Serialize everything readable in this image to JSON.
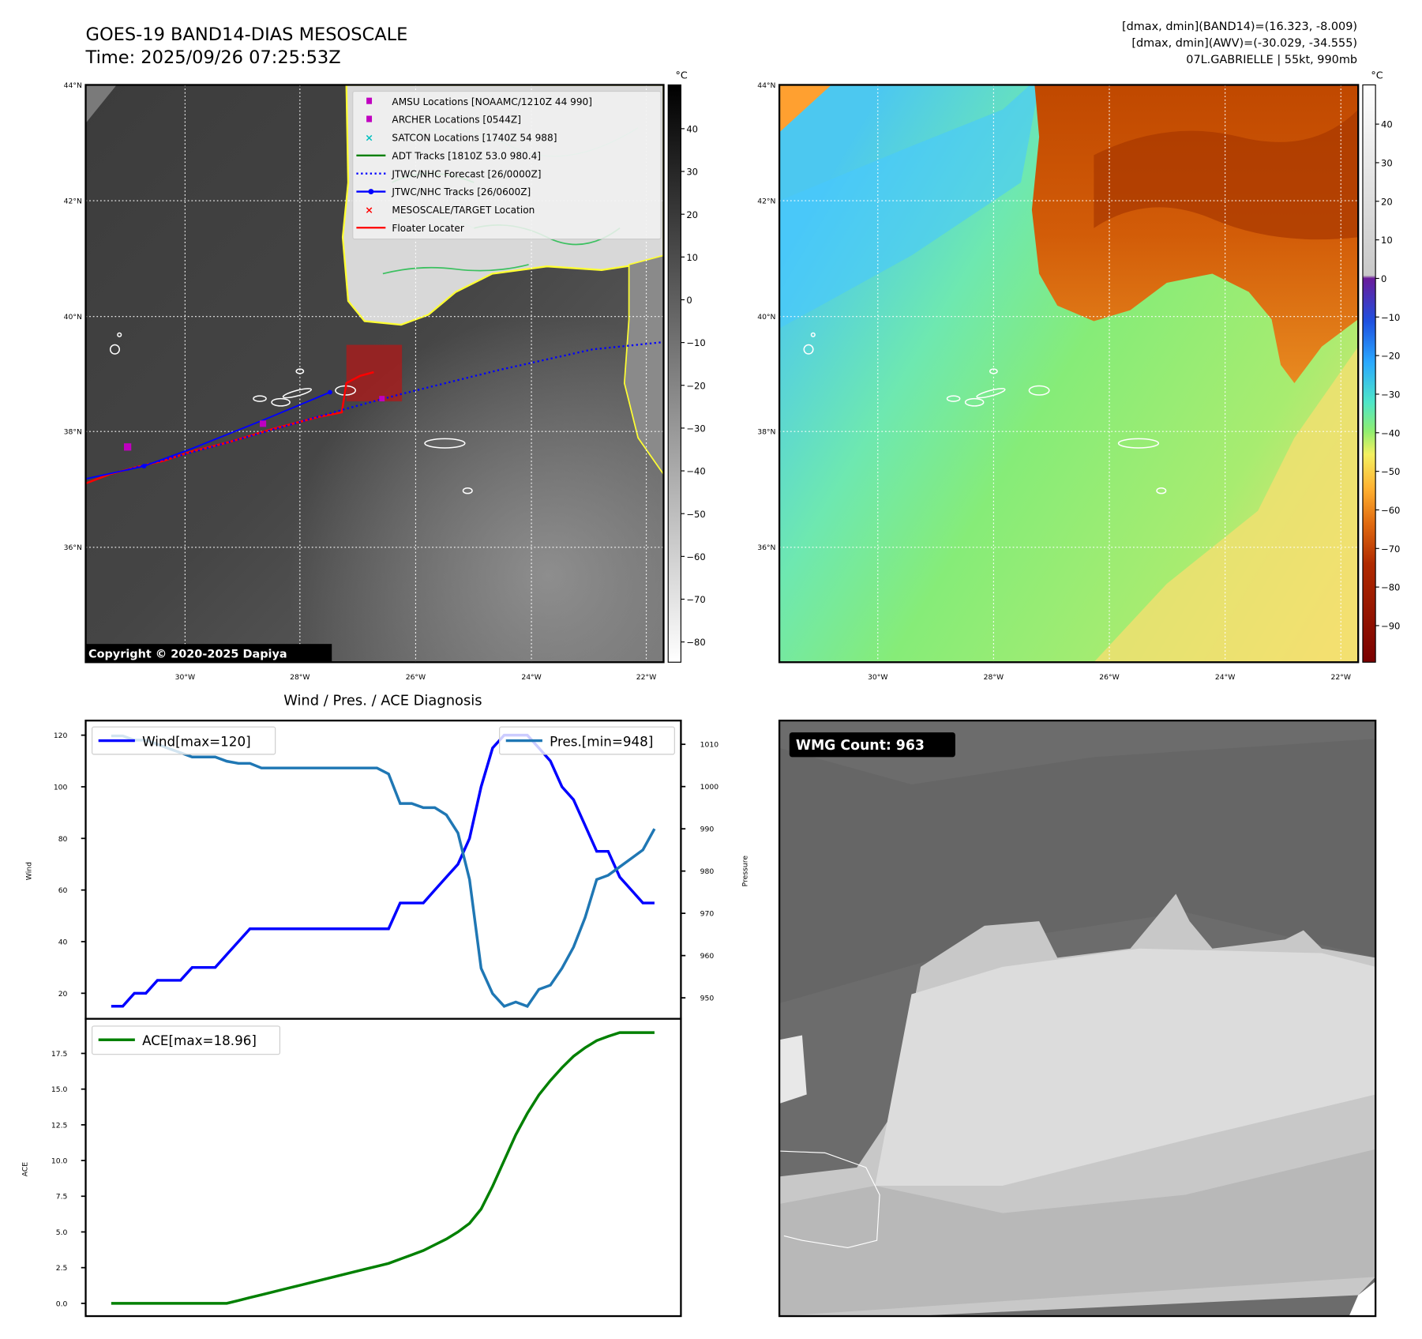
{
  "header": {
    "title": "GOES-19 BAND14-DIAS MESOSCALE",
    "time": "Time: 2025/09/26 07:25:53Z",
    "stats": [
      "[dmax, dmin](BAND14)=(16.323, -8.009)",
      "[dmax, dmin](AWV)=(-30.029, -34.555)",
      "07L.GABRIELLE | 55kt, 990mb"
    ]
  },
  "map_ir": {
    "lat_labels": [
      "44°N",
      "42°N",
      "40°N",
      "38°N",
      "36°N"
    ],
    "lon_labels": [
      "30°W",
      "28°W",
      "26°W",
      "24°W",
      "22°W"
    ],
    "colorbar_unit": "°C",
    "colorbar_ticks": [
      "40",
      "30",
      "20",
      "10",
      "0",
      "−10",
      "−20",
      "−30",
      "−40",
      "−50",
      "−60",
      "−70",
      "−80"
    ],
    "legend": [
      {
        "label": "AMSU Locations [NOAAMC/1210Z 44 990]",
        "marker": "square",
        "color": "#c000c0"
      },
      {
        "label": "ARCHER Locations [0544Z]",
        "marker": "square",
        "color": "#c000c0"
      },
      {
        "label": "SATCON Locations [1740Z 54 988]",
        "marker": "x",
        "color": "#00bfbf"
      },
      {
        "label": "ADT Tracks [1810Z 53.0 980.4]",
        "marker": "line",
        "color": "#008000"
      },
      {
        "label": "JTWC/NHC Forecast [26/0000Z]",
        "marker": "dotted",
        "color": "#0000ff"
      },
      {
        "label": "JTWC/NHC Tracks [26/0600Z]",
        "marker": "line-dot",
        "color": "#0000ff"
      },
      {
        "label": "MESOSCALE/TARGET Location",
        "marker": "x",
        "color": "#ff0000"
      },
      {
        "label": "Floater Locater",
        "marker": "line",
        "color": "#ff0000"
      }
    ],
    "copyright": "Copyright © 2020-2025 Dapiya"
  },
  "map_wv": {
    "lat_labels": [
      "44°N",
      "42°N",
      "40°N",
      "38°N",
      "36°N"
    ],
    "lon_labels": [
      "30°W",
      "28°W",
      "26°W",
      "24°W",
      "22°W"
    ],
    "colorbar_unit": "°C",
    "colorbar_ticks": [
      "40",
      "30",
      "20",
      "10",
      "0",
      "−10",
      "−20",
      "−30",
      "−40",
      "−50",
      "−60",
      "−70",
      "−80",
      "−90"
    ]
  },
  "wmg": {
    "label": "WMG Count: 963"
  },
  "chart_data": [
    {
      "type": "line",
      "title": "Wind / Pres. / ACE Diagnosis",
      "ylabel": "Wind",
      "ylabel_right": "Pressure",
      "yticks": [
        "20",
        "40",
        "60",
        "80",
        "100",
        "120"
      ],
      "yticks_right": [
        "950",
        "960",
        "970",
        "980",
        "990",
        "1000",
        "1010"
      ],
      "series": [
        {
          "name": "Wind[max=120]",
          "axis": "left",
          "color": "#0000ff",
          "values": [
            15,
            15,
            20,
            20,
            25,
            25,
            25,
            30,
            30,
            30,
            35,
            40,
            45,
            45,
            45,
            45,
            45,
            45,
            45,
            45,
            45,
            45,
            45,
            45,
            45,
            55,
            55,
            55,
            60,
            65,
            70,
            80,
            100,
            115,
            120,
            120,
            120,
            115,
            110,
            100,
            95,
            85,
            75,
            75,
            65,
            60,
            55,
            55
          ]
        },
        {
          "name": "Pres.[min=948]",
          "axis": "right",
          "color": "#1f77b4",
          "values": [
            1012,
            1012,
            1011,
            1011,
            1010,
            1009,
            1008,
            1007,
            1007,
            1007,
            1006,
            1005.5,
            1005.5,
            1004.4,
            1004.4,
            1004.4,
            1004.4,
            1004.4,
            1004.4,
            1004.4,
            1004.4,
            1004.4,
            1004.4,
            1004.4,
            1003,
            996,
            996,
            995,
            995,
            993.3,
            989,
            978,
            957,
            951,
            948,
            949,
            948,
            952,
            953,
            957,
            962,
            969,
            978,
            979,
            981,
            983,
            985,
            990
          ]
        }
      ]
    },
    {
      "type": "line",
      "ylabel": "ACE",
      "yticks": [
        "0.0",
        "2.5",
        "5.0",
        "7.5",
        "10.0",
        "12.5",
        "15.0",
        "17.5"
      ],
      "series": [
        {
          "name": "ACE[max=18.96]",
          "color": "#008000",
          "values": [
            0,
            0,
            0,
            0,
            0,
            0,
            0,
            0,
            0,
            0,
            0,
            0.2,
            0.4,
            0.6,
            0.8,
            1.0,
            1.2,
            1.4,
            1.6,
            1.8,
            2.0,
            2.2,
            2.4,
            2.6,
            2.8,
            3.1,
            3.4,
            3.7,
            4.1,
            4.5,
            5.0,
            5.6,
            6.6,
            8.2,
            10.0,
            11.8,
            13.3,
            14.6,
            15.6,
            16.5,
            17.3,
            17.9,
            18.4,
            18.7,
            18.96,
            18.96,
            18.96,
            18.96
          ]
        }
      ]
    }
  ]
}
